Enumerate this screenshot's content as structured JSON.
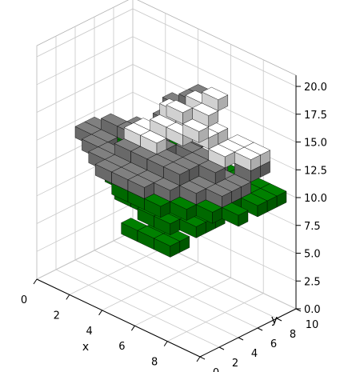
{
  "chart_data": {
    "type": "voxels",
    "title": "",
    "xlabel": "x",
    "ylabel": "y",
    "zlabel": "",
    "xlim": [
      0,
      10
    ],
    "ylim": [
      0,
      10
    ],
    "zlim": [
      0,
      21
    ],
    "x_ticks": [
      "0",
      "2",
      "4",
      "6",
      "8",
      "10"
    ],
    "y_ticks": [
      "0",
      "2",
      "4",
      "6",
      "8",
      "10"
    ],
    "z_ticks": [
      "0.0",
      "2.5",
      "5.0",
      "7.5",
      "10.0",
      "12.5",
      "15.0",
      "17.5",
      "20.0"
    ],
    "grid": true,
    "pane_color": "#f2f2f2",
    "series": [
      {
        "material": "green",
        "color": "#008000",
        "voxels": [
          [
            0,
            5,
            10
          ],
          [
            1,
            5,
            10
          ],
          [
            2,
            5,
            10
          ],
          [
            3,
            5,
            10
          ],
          [
            4,
            5,
            10
          ],
          [
            5,
            5,
            10
          ],
          [
            6,
            5,
            10
          ],
          [
            7,
            5,
            10
          ],
          [
            8,
            5,
            10
          ],
          [
            1,
            4,
            10
          ],
          [
            2,
            4,
            10
          ],
          [
            3,
            4,
            10
          ],
          [
            4,
            4,
            10
          ],
          [
            5,
            4,
            10
          ],
          [
            6,
            4,
            10
          ],
          [
            7,
            4,
            10
          ],
          [
            8,
            4,
            10
          ],
          [
            9,
            4,
            10
          ],
          [
            1,
            6,
            10
          ],
          [
            2,
            6,
            10
          ],
          [
            3,
            6,
            10
          ],
          [
            4,
            6,
            10
          ],
          [
            5,
            6,
            10
          ],
          [
            6,
            6,
            10
          ],
          [
            7,
            6,
            10
          ],
          [
            8,
            6,
            10
          ],
          [
            9,
            6,
            10
          ],
          [
            2,
            3,
            10
          ],
          [
            3,
            3,
            10
          ],
          [
            4,
            3,
            10
          ],
          [
            5,
            3,
            10
          ],
          [
            6,
            3,
            10
          ],
          [
            7,
            3,
            10
          ],
          [
            8,
            3,
            10
          ],
          [
            2,
            7,
            10
          ],
          [
            3,
            7,
            10
          ],
          [
            4,
            7,
            10
          ],
          [
            5,
            7,
            10
          ],
          [
            6,
            7,
            10
          ],
          [
            7,
            7,
            10
          ],
          [
            8,
            7,
            10
          ],
          [
            3,
            2,
            10
          ],
          [
            4,
            2,
            10
          ],
          [
            5,
            2,
            10
          ],
          [
            6,
            2,
            10
          ],
          [
            7,
            2,
            10
          ],
          [
            3,
            8,
            10
          ],
          [
            4,
            8,
            10
          ],
          [
            5,
            8,
            10
          ],
          [
            6,
            8,
            10
          ],
          [
            7,
            8,
            10
          ],
          [
            9,
            8,
            10
          ],
          [
            8,
            8,
            10
          ],
          [
            9,
            7,
            10
          ],
          [
            4,
            1,
            10
          ],
          [
            5,
            1,
            10
          ],
          [
            6,
            1,
            10
          ],
          [
            5,
            5,
            8
          ],
          [
            6,
            5,
            8
          ],
          [
            5,
            4,
            8
          ],
          [
            6,
            4,
            8
          ],
          [
            4,
            4,
            8
          ],
          [
            4,
            3,
            8
          ],
          [
            5,
            3,
            8
          ],
          [
            6,
            3,
            8
          ],
          [
            3,
            4,
            8
          ],
          [
            3,
            3,
            8
          ],
          [
            5,
            2,
            8
          ],
          [
            6,
            2,
            8
          ],
          [
            7,
            4,
            8
          ],
          [
            7,
            3,
            8
          ],
          [
            6,
            6,
            8
          ],
          [
            7,
            5,
            8
          ],
          [
            5,
            3,
            6
          ],
          [
            6,
            3,
            6
          ],
          [
            5,
            2,
            6
          ],
          [
            6,
            2,
            6
          ],
          [
            4,
            2,
            6
          ]
        ]
      },
      {
        "material": "gray",
        "color": "#808080",
        "voxels": [
          [
            0,
            4,
            11
          ],
          [
            0,
            5,
            11
          ],
          [
            1,
            3,
            11
          ],
          [
            1,
            4,
            11
          ],
          [
            2,
            3,
            11
          ],
          [
            2,
            2,
            11
          ],
          [
            3,
            2,
            11
          ],
          [
            4,
            2,
            11
          ],
          [
            3,
            1,
            11
          ],
          [
            4,
            1,
            11
          ],
          [
            5,
            1,
            11
          ],
          [
            5,
            2,
            11
          ],
          [
            6,
            2,
            11
          ],
          [
            7,
            3,
            11
          ],
          [
            7,
            4,
            11
          ],
          [
            8,
            4,
            11
          ],
          [
            8,
            5,
            11
          ],
          [
            8,
            6,
            11
          ],
          [
            7,
            6,
            11
          ],
          [
            6,
            7,
            11
          ],
          [
            5,
            7,
            11
          ],
          [
            2,
            6,
            12
          ],
          [
            3,
            6,
            12
          ],
          [
            3,
            5,
            12
          ],
          [
            2,
            5,
            12
          ],
          [
            1,
            5,
            12
          ],
          [
            4,
            5,
            12
          ],
          [
            5,
            6,
            12
          ],
          [
            6,
            6,
            12
          ],
          [
            6,
            5,
            12
          ],
          [
            7,
            5,
            12
          ],
          [
            3,
            4,
            12
          ],
          [
            4,
            4,
            12
          ],
          [
            5,
            4,
            12
          ],
          [
            6,
            4,
            12
          ],
          [
            3,
            3,
            12
          ],
          [
            4,
            3,
            12
          ],
          [
            5,
            3,
            12
          ],
          [
            6,
            3,
            12
          ],
          [
            4,
            7,
            13
          ],
          [
            5,
            7,
            13
          ],
          [
            3,
            7,
            13
          ],
          [
            8,
            7,
            12
          ],
          [
            8,
            8,
            12
          ],
          [
            3,
            8,
            14
          ],
          [
            4,
            8,
            15
          ],
          [
            4,
            9,
            15
          ]
        ]
      },
      {
        "material": "white",
        "color": "#ffffff",
        "voxels": [
          [
            4,
            6,
            14
          ],
          [
            5,
            6,
            14
          ],
          [
            4,
            5,
            14
          ],
          [
            5,
            5,
            14
          ],
          [
            6,
            6,
            14
          ],
          [
            6,
            7,
            14
          ],
          [
            5,
            7,
            15
          ],
          [
            6,
            5,
            15
          ],
          [
            5,
            6,
            15
          ],
          [
            4,
            6,
            15
          ],
          [
            5,
            5,
            16
          ],
          [
            6,
            6,
            16
          ],
          [
            6,
            7,
            17
          ],
          [
            5,
            7,
            16
          ],
          [
            7,
            7,
            13
          ],
          [
            7,
            8,
            13
          ],
          [
            8,
            7,
            13
          ],
          [
            8,
            8,
            13
          ],
          [
            7,
            6,
            13
          ],
          [
            3,
            5,
            13
          ],
          [
            3,
            4,
            13
          ],
          [
            4,
            4,
            13
          ]
        ]
      }
    ]
  }
}
